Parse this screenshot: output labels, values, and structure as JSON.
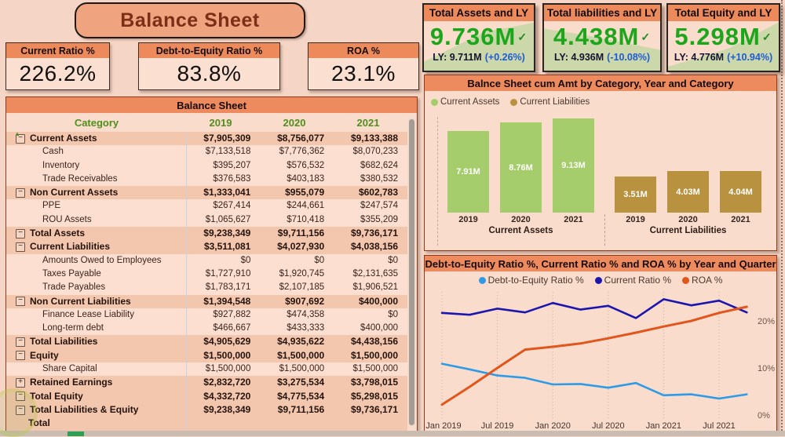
{
  "page": {
    "title": "Balance Sheet"
  },
  "colors": {
    "accent_orange": "#ED8A5C",
    "panel_bg": "#FADCCD",
    "page_bg": "#F5D5C5",
    "kpi_green": "#1CA61C",
    "delta_blue": "#1D5CD6",
    "table_header_green": "#4F8F1D",
    "bar_green": "#A5CD6B",
    "bar_gold": "#B8923E",
    "line_lightblue": "#2E9BE6",
    "line_navy": "#1B16AD",
    "line_orange": "#E2551B"
  },
  "ratio_cards": [
    {
      "title": "Current Ratio %",
      "value": "226.2%"
    },
    {
      "title": "Debt-to-Equity Ratio %",
      "value": "83.8%"
    },
    {
      "title": "ROA %",
      "value": "23.1%"
    }
  ],
  "kpi_cards": [
    {
      "title": "Total Assets and LY",
      "value": "9.736M",
      "check": "✓",
      "ly": "LY: 9.711M",
      "delta": "(+0.26%)"
    },
    {
      "title": "Total liabilities and LY",
      "value": "4.438M",
      "check": "✓",
      "ly": "LY: 4.936M",
      "delta": "(-10.08%)"
    },
    {
      "title": "Total Equity and LY",
      "value": "5.298M",
      "check": "✓",
      "ly": "LY: 4.776M",
      "delta": "(+10.94%)"
    }
  ],
  "table": {
    "title": "Balance Sheet",
    "columns": [
      "Category",
      "2019",
      "2020",
      "2021"
    ],
    "rows": [
      {
        "label": "Current Assets",
        "bold": true,
        "icon": "minus",
        "values": [
          "$7,905,309",
          "$8,756,077",
          "$9,133,388"
        ]
      },
      {
        "label": "Cash",
        "bold": false,
        "icon": null,
        "values": [
          "$7,133,518",
          "$7,776,362",
          "$8,070,233"
        ]
      },
      {
        "label": "Inventory",
        "bold": false,
        "icon": null,
        "values": [
          "$395,207",
          "$576,532",
          "$682,624"
        ]
      },
      {
        "label": "Trade Receivables",
        "bold": false,
        "icon": null,
        "values": [
          "$376,583",
          "$403,183",
          "$380,532"
        ]
      },
      {
        "label": "Non Current Assets",
        "bold": true,
        "icon": "minus",
        "values": [
          "$1,333,041",
          "$955,079",
          "$602,783"
        ]
      },
      {
        "label": "PPE",
        "bold": false,
        "icon": null,
        "values": [
          "$267,414",
          "$244,661",
          "$247,574"
        ]
      },
      {
        "label": "ROU Assets",
        "bold": false,
        "icon": null,
        "values": [
          "$1,065,627",
          "$710,418",
          "$355,209"
        ]
      },
      {
        "label": "Total Assets",
        "bold": true,
        "icon": "minus",
        "values": [
          "$9,238,349",
          "$9,711,156",
          "$9,736,171"
        ]
      },
      {
        "label": "Current Liabilities",
        "bold": true,
        "icon": "minus",
        "values": [
          "$3,511,081",
          "$4,027,930",
          "$4,038,156"
        ]
      },
      {
        "label": "Amounts Owed to Employees",
        "bold": false,
        "icon": null,
        "values": [
          "$0",
          "$0",
          "$0"
        ]
      },
      {
        "label": "Taxes Payable",
        "bold": false,
        "icon": null,
        "values": [
          "$1,727,910",
          "$1,920,745",
          "$2,131,635"
        ]
      },
      {
        "label": "Trade Payables",
        "bold": false,
        "icon": null,
        "values": [
          "$1,783,171",
          "$2,107,185",
          "$1,906,521"
        ]
      },
      {
        "label": "Non Current Liabilities",
        "bold": true,
        "icon": "minus",
        "values": [
          "$1,394,548",
          "$907,692",
          "$400,000"
        ]
      },
      {
        "label": "Finance Lease Liability",
        "bold": false,
        "icon": null,
        "values": [
          "$927,882",
          "$474,358",
          "$0"
        ]
      },
      {
        "label": "Long-term debt",
        "bold": false,
        "icon": null,
        "values": [
          "$466,667",
          "$433,333",
          "$400,000"
        ]
      },
      {
        "label": "Total Liabilities",
        "bold": true,
        "icon": "minus",
        "values": [
          "$4,905,629",
          "$4,935,622",
          "$4,438,156"
        ]
      },
      {
        "label": "Equity",
        "bold": true,
        "icon": "minus",
        "values": [
          "$1,500,000",
          "$1,500,000",
          "$1,500,000"
        ]
      },
      {
        "label": "Share Capital",
        "bold": false,
        "icon": null,
        "values": [
          "$1,500,000",
          "$1,500,000",
          "$1,500,000"
        ]
      },
      {
        "label": "Retained Earnings",
        "bold": true,
        "icon": "plus",
        "values": [
          "$2,832,720",
          "$3,275,534",
          "$3,798,015"
        ]
      },
      {
        "label": "Total Equity",
        "bold": true,
        "icon": "minus",
        "values": [
          "$4,332,720",
          "$4,775,534",
          "$5,298,015"
        ]
      },
      {
        "label": "Total Liabilities & Equity",
        "bold": true,
        "icon": "minus",
        "values": [
          "$9,238,349",
          "$9,711,156",
          "$9,736,171"
        ]
      },
      {
        "label": "Total",
        "bold": true,
        "icon": null,
        "values": [
          "",
          "",
          ""
        ]
      }
    ]
  },
  "chart_data": [
    {
      "type": "bar",
      "title": "Balnce Sheet cum Amt by Category, Year and Category",
      "categories": [
        "2019",
        "2020",
        "2021"
      ],
      "series": [
        {
          "name": "Current Assets",
          "color": "#A5CD6B",
          "values": [
            7.91,
            8.76,
            9.13
          ],
          "labels": [
            "7.91M",
            "8.76M",
            "9.13M"
          ]
        },
        {
          "name": "Current Liabilities",
          "color": "#B8923E",
          "values": [
            3.51,
            4.03,
            4.04
          ],
          "labels": [
            "3.51M",
            "4.03M",
            "4.04M"
          ]
        }
      ],
      "unit": "M",
      "ylim": [
        0,
        9.9
      ],
      "legend_position": "top-left"
    },
    {
      "type": "line",
      "title": "Debt-to-Equity Ratio %, Current Ratio % and ROA % by Year and Quarter",
      "x": [
        "Jan 2019",
        "Apr 2019",
        "Jul 2019",
        "Oct 2019",
        "Jan 2020",
        "Apr 2020",
        "Jul 2020",
        "Oct 2020",
        "Jan 2021",
        "Apr 2021",
        "Jul 2021",
        "Oct 2021"
      ],
      "x_tick_labels": [
        "Jan 2019",
        "Jul 2019",
        "Jan 2020",
        "Jul 2020",
        "Jan 2021",
        "Jul 2021"
      ],
      "y_ticks": [
        {
          "label": "0%",
          "value": 0
        },
        {
          "label": "10%",
          "value": 10
        },
        {
          "label": "20%",
          "value": 20
        }
      ],
      "ylim": [
        0,
        27
      ],
      "series": [
        {
          "name": "Debt-to-Equity Ratio %",
          "color": "#2E9BE6",
          "width": 2.6,
          "values": [
            10.9,
            9.7,
            8.4,
            7.9,
            6.5,
            6.6,
            5.8,
            6.8,
            4.2,
            4.4,
            3.5,
            4.4
          ]
        },
        {
          "name": "Current Ratio %",
          "color": "#1B16AD",
          "width": 2.6,
          "values": [
            21.7,
            21.3,
            22.6,
            21.8,
            23.8,
            22.4,
            23.2,
            20.6,
            24.6,
            23.3,
            24.3,
            21.8
          ]
        },
        {
          "name": "ROA %",
          "color": "#E2551B",
          "width": 3,
          "values": [
            2.2,
            6.0,
            10.0,
            13.9,
            14.5,
            15.2,
            16.3,
            17.5,
            18.8,
            20.0,
            21.7,
            23.0
          ]
        }
      ],
      "legend_position": "top-center",
      "grid": "vertical-dotted"
    }
  ]
}
